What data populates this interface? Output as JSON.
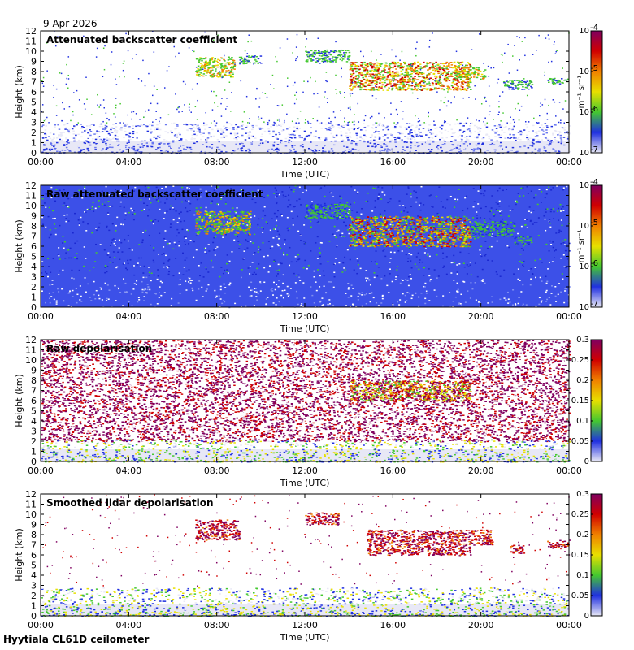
{
  "date": "9 Apr 2026",
  "footer": "Hyytiala CL61D ceilometer",
  "xlabel": "Time (UTC)",
  "ylabel": "Height (km)",
  "colors": {
    "low": "#e8e8f6",
    "blue": "#2030e0",
    "green": "#44c830",
    "yellow": "#e8e000",
    "orange": "#f08000",
    "red": "#d00000",
    "purple": "#800060"
  },
  "chart_data": [
    {
      "type": "heatmap",
      "title": "Attenuated backscatter coefficient",
      "x_ticks": [
        "00:00",
        "04:00",
        "08:00",
        "12:00",
        "16:00",
        "20:00",
        "00:00"
      ],
      "y_ticks": [
        0,
        1,
        2,
        3,
        4,
        5,
        6,
        7,
        8,
        9,
        10,
        11,
        12
      ],
      "xlim": [
        0,
        24
      ],
      "ylim": [
        0,
        12
      ],
      "colorbar": {
        "scale": "log",
        "range": [
          1e-07,
          0.0001
        ],
        "ticks": [
          "10",
          "10",
          "10",
          "10"
        ],
        "tick_exponents": [
          "-7",
          "-6",
          "-5",
          "-4"
        ],
        "unit": "m⁻¹ sr⁻¹"
      },
      "features": [
        {
          "name": "boundary layer",
          "time_range": [
            0,
            24
          ],
          "height_range": [
            0,
            3
          ],
          "level": "low"
        },
        {
          "name": "cloud",
          "time_range": [
            7.0,
            8.8
          ],
          "height_range": [
            7.5,
            9.5
          ],
          "level": "mid"
        },
        {
          "name": "cloud",
          "time_range": [
            9.0,
            10.0
          ],
          "height_range": [
            8.8,
            9.6
          ],
          "level": "mid-low"
        },
        {
          "name": "cloud",
          "time_range": [
            12.0,
            14.0
          ],
          "height_range": [
            9.0,
            10.2
          ],
          "level": "mid-low"
        },
        {
          "name": "cloud",
          "time_range": [
            14.0,
            19.5
          ],
          "height_range": [
            6.2,
            9.0
          ],
          "level": "high"
        },
        {
          "name": "cloud",
          "time_range": [
            18.8,
            20.2
          ],
          "height_range": [
            7.3,
            8.5
          ],
          "level": "mid"
        },
        {
          "name": "cloud",
          "time_range": [
            21.0,
            22.3
          ],
          "height_range": [
            6.3,
            7.2
          ],
          "level": "mid-low"
        },
        {
          "name": "cloud",
          "time_range": [
            23.0,
            24.0
          ],
          "height_range": [
            6.8,
            7.4
          ],
          "level": "mid-low"
        }
      ]
    },
    {
      "type": "heatmap",
      "title": "Raw attenuated backscatter coefficient",
      "x_ticks": [
        "00:00",
        "04:00",
        "08:00",
        "12:00",
        "16:00",
        "20:00",
        "00:00"
      ],
      "y_ticks": [
        0,
        1,
        2,
        3,
        4,
        5,
        6,
        7,
        8,
        9,
        10,
        11,
        12
      ],
      "xlim": [
        0,
        24
      ],
      "ylim": [
        0,
        12
      ],
      "colorbar": {
        "scale": "log",
        "range": [
          1e-07,
          0.0001
        ],
        "ticks": [
          "10",
          "10",
          "10",
          "10"
        ],
        "tick_exponents": [
          "-7",
          "-6",
          "-5",
          "-4"
        ],
        "unit": "m⁻¹ sr⁻¹"
      },
      "features": [
        {
          "name": "noise background",
          "time_range": [
            0,
            24
          ],
          "height_range": [
            0,
            12
          ],
          "level": "low"
        },
        {
          "name": "cloud",
          "time_range": [
            7.0,
            9.5
          ],
          "height_range": [
            7.2,
            9.5
          ],
          "level": "mid"
        },
        {
          "name": "cloud",
          "time_range": [
            12.0,
            14.0
          ],
          "height_range": [
            8.8,
            10.2
          ],
          "level": "mid-low"
        },
        {
          "name": "cloud",
          "time_range": [
            14.0,
            19.5
          ],
          "height_range": [
            6.0,
            9.0
          ],
          "level": "high"
        },
        {
          "name": "cloud",
          "time_range": [
            19.5,
            21.5
          ],
          "height_range": [
            7.0,
            8.5
          ],
          "level": "mid-low"
        },
        {
          "name": "cloud",
          "time_range": [
            21.5,
            22.3
          ],
          "height_range": [
            6.3,
            7.0
          ],
          "level": "mid-low"
        }
      ]
    },
    {
      "type": "heatmap",
      "title": "Raw depolarisation",
      "x_ticks": [
        "00:00",
        "04:00",
        "08:00",
        "12:00",
        "16:00",
        "20:00",
        "00:00"
      ],
      "y_ticks": [
        0,
        1,
        2,
        3,
        4,
        5,
        6,
        7,
        8,
        9,
        10,
        11,
        12
      ],
      "xlim": [
        0,
        24
      ],
      "ylim": [
        0,
        12
      ],
      "colorbar": {
        "scale": "linear",
        "range": [
          0,
          0.3
        ],
        "ticks": [
          "0",
          "0.05",
          "0.1",
          "0.15",
          "0.2",
          "0.25",
          "0.3"
        ]
      },
      "features": [
        {
          "name": "noise",
          "time_range": [
            0,
            24
          ],
          "height_range": [
            2,
            12
          ],
          "level": "high-noise"
        },
        {
          "name": "boundary layer",
          "time_range": [
            0,
            24
          ],
          "height_range": [
            0,
            2.2
          ],
          "level": "low"
        },
        {
          "name": "cloud",
          "time_range": [
            14.0,
            19.5
          ],
          "height_range": [
            6.0,
            8.0
          ],
          "level": "mixed"
        }
      ]
    },
    {
      "type": "heatmap",
      "title": "Smoothed lidar depolarisation",
      "x_ticks": [
        "00:00",
        "04:00",
        "08:00",
        "12:00",
        "16:00",
        "20:00",
        "00:00"
      ],
      "y_ticks": [
        0,
        1,
        2,
        3,
        4,
        5,
        6,
        7,
        8,
        9,
        10,
        11,
        12
      ],
      "xlim": [
        0,
        24
      ],
      "ylim": [
        0,
        12
      ],
      "colorbar": {
        "scale": "linear",
        "range": [
          0,
          0.3
        ],
        "ticks": [
          "0",
          "0.05",
          "0.1",
          "0.15",
          "0.2",
          "0.25",
          "0.3"
        ]
      },
      "features": [
        {
          "name": "boundary layer",
          "time_range": [
            0,
            24
          ],
          "height_range": [
            0,
            2.8
          ],
          "level": "low"
        },
        {
          "name": "cloud",
          "time_range": [
            7.0,
            9.0
          ],
          "height_range": [
            7.5,
            9.5
          ],
          "level": "high"
        },
        {
          "name": "cloud",
          "time_range": [
            12.0,
            13.5
          ],
          "height_range": [
            9.0,
            10.2
          ],
          "level": "high"
        },
        {
          "name": "cloud",
          "time_range": [
            14.8,
            19.5
          ],
          "height_range": [
            6.0,
            8.5
          ],
          "level": "high"
        },
        {
          "name": "cloud",
          "time_range": [
            19.5,
            20.5
          ],
          "height_range": [
            7.0,
            8.5
          ],
          "level": "high"
        },
        {
          "name": "cloud",
          "time_range": [
            21.3,
            22.0
          ],
          "height_range": [
            6.2,
            7.0
          ],
          "level": "high"
        },
        {
          "name": "cloud",
          "time_range": [
            23.0,
            24.0
          ],
          "height_range": [
            6.8,
            7.5
          ],
          "level": "high"
        }
      ]
    }
  ]
}
